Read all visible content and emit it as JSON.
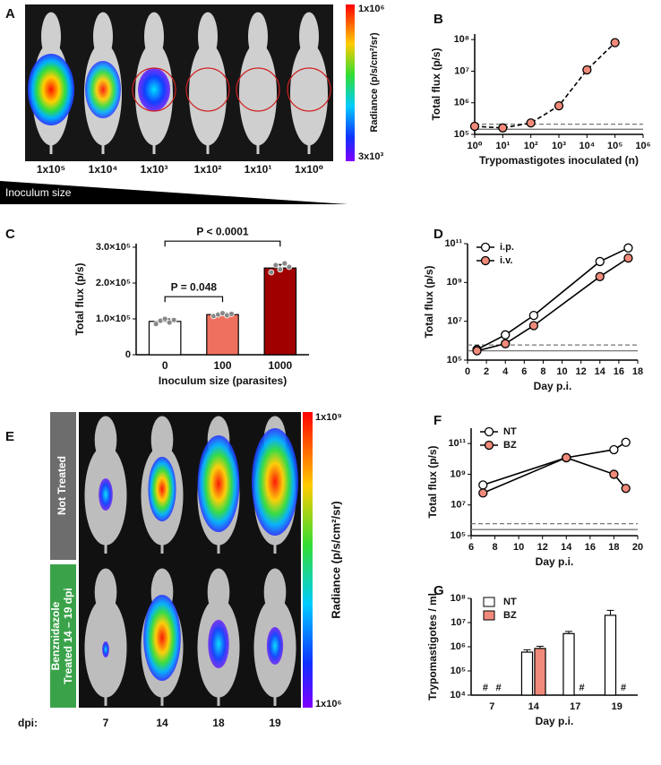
{
  "panel_a": {
    "panel": "A",
    "labels": [
      "1x10⁵",
      "1x10⁴",
      "1x10³",
      "1x10²",
      "1x10¹",
      "1x10⁰"
    ],
    "inoculum_label": "Inoculum size",
    "colorbar": {
      "max": "1x10⁶",
      "min": "3x10³",
      "title": "Radiance (p/s/cm²/sr)"
    }
  },
  "panel_e": {
    "panel": "E",
    "rows": [
      {
        "lines": [
          "Not Treated"
        ]
      },
      {
        "lines": [
          "Benznidazole",
          "Treated 14 – 19 dpi"
        ]
      }
    ],
    "dpi_label": "dpi:",
    "days": [
      "7",
      "14",
      "18",
      "19"
    ],
    "colorbar": {
      "max": "1x10⁹",
      "min": "1x10⁶",
      "title": "Radiance (p/s/cm²/sr)"
    }
  },
  "chart_data": [
    {
      "panel": "B",
      "type": "line",
      "x_label": "Trypomastigotes inoculated (n)",
      "y_label": "Total flux (p/s)",
      "log_x": true,
      "log_y": true,
      "x": [
        1,
        10,
        100,
        1000,
        10000,
        100000
      ],
      "series": [
        {
          "values": [
            180000,
            160000,
            230000,
            800000,
            11000000,
            80000000
          ],
          "color": "#f08a7a",
          "line_style": "dashed"
        }
      ],
      "xlim": [
        1,
        1000000
      ],
      "xticks": [
        {
          "value": 1,
          "label": "10⁰"
        },
        {
          "value": 10,
          "label": "10¹"
        },
        {
          "value": 100,
          "label": "10²"
        },
        {
          "value": 1000,
          "label": "10³"
        },
        {
          "value": 10000,
          "label": "10⁴"
        },
        {
          "value": 100000,
          "label": "10⁵"
        },
        {
          "value": 1000000,
          "label": "10⁶"
        }
      ],
      "ylim": [
        100000,
        150000000
      ],
      "yticks": [
        {
          "value": 100000,
          "label": "10⁵"
        },
        {
          "value": 1000000,
          "label": "10⁶"
        },
        {
          "value": 10000000,
          "label": "10⁷"
        },
        {
          "value": 100000000,
          "label": "10⁸"
        }
      ],
      "reference_lines": [
        {
          "value": 210000,
          "style": "dashed"
        },
        {
          "value": 145000,
          "style": "solid"
        }
      ]
    },
    {
      "panel": "C",
      "type": "bar",
      "x_label": "Inoculum size (parasites)",
      "y_label": "Total flux (p/s)",
      "categories": [
        "0",
        "100",
        "1000"
      ],
      "values": [
        93000,
        112000,
        242000
      ],
      "errors": [
        7000,
        5000,
        10000
      ],
      "colors": [
        "#ffffff",
        "#f0705f",
        "#a00000"
      ],
      "points": [
        [
          86000,
          95000,
          100000,
          90000,
          97000
        ],
        [
          108000,
          112000,
          116000,
          110000,
          114000
        ],
        [
          230000,
          250000,
          238000,
          255000,
          245000
        ]
      ],
      "ylim": [
        0,
        310000
      ],
      "yticks": [
        0,
        {
          "value": 100000,
          "label": "1.0×10⁵"
        },
        {
          "value": 200000,
          "label": "2.0×10⁵"
        },
        {
          "value": 300000,
          "label": "3.0×10⁵"
        }
      ],
      "annotations": [
        {
          "text": "P = 0.048",
          "from": 0,
          "to": 1
        },
        {
          "text": "P < 0.0001",
          "from": 0,
          "to": 2
        }
      ]
    },
    {
      "panel": "D",
      "type": "line",
      "x_label": "Day p.i.",
      "y_label": "Total flux (p/s)",
      "log_y": true,
      "x": [
        1,
        4,
        7,
        14,
        17
      ],
      "series": [
        {
          "name": "i.p.",
          "color": "#ffffff",
          "values": [
            350000,
            2000000,
            20000000,
            12000000000,
            60000000000
          ]
        },
        {
          "name": "i.v.",
          "color": "#f08a7a",
          "values": [
            300000,
            700000,
            6000000,
            2000000000,
            18000000000
          ]
        }
      ],
      "legend": "upper-left",
      "xlim": [
        0,
        18
      ],
      "xticks": [
        0,
        2,
        4,
        6,
        8,
        10,
        12,
        14,
        16,
        18
      ],
      "ylim": [
        100000,
        100000000000
      ],
      "yticks": [
        {
          "value": 100000,
          "label": "10⁵"
        },
        {
          "value": 10000000,
          "label": "10⁷"
        },
        {
          "value": 1000000000,
          "label": "10⁹"
        },
        {
          "value": 100000000000,
          "label": "10¹¹"
        }
      ],
      "reference_lines": [
        {
          "value": 600000,
          "style": "dashed"
        },
        {
          "value": 300000,
          "style": "solid"
        }
      ]
    },
    {
      "panel": "F",
      "type": "line",
      "x_label": "Day p.i.",
      "y_label": "Total flux (p/s)",
      "log_y": true,
      "x": [
        7,
        14,
        18,
        19
      ],
      "series": [
        {
          "name": "NT",
          "color": "#ffffff",
          "values": [
            200000000,
            12000000000,
            40000000000,
            120000000000
          ]
        },
        {
          "name": "BZ",
          "color": "#f08a7a",
          "values": [
            60000000,
            12000000000,
            1000000000,
            120000000
          ]
        }
      ],
      "legend": "upper-left",
      "xlim": [
        6,
        20
      ],
      "xticks": [
        6,
        8,
        10,
        12,
        14,
        16,
        18,
        20
      ],
      "ylim": [
        100000,
        1000000000000
      ],
      "yticks": [
        {
          "value": 100000,
          "label": "10⁵"
        },
        {
          "value": 10000000,
          "label": "10⁷"
        },
        {
          "value": 1000000000,
          "label": "10⁹"
        },
        {
          "value": 100000000000,
          "label": "10¹¹"
        }
      ],
      "reference_lines": [
        {
          "value": 600000,
          "style": "dashed"
        },
        {
          "value": 250000,
          "style": "solid"
        }
      ]
    },
    {
      "panel": "G",
      "type": "bar",
      "x_label": "Day p.i.",
      "y_label": "Trypomastigotes / ml",
      "log_y": true,
      "categories": [
        "7",
        "14",
        "17",
        "19"
      ],
      "series": [
        {
          "name": "NT",
          "color": "#ffffff",
          "values": [
            null,
            600000,
            3500000,
            20000000
          ],
          "errors": [
            null,
            150000,
            800000,
            12000000
          ],
          "value_labels": [
            "#",
            null,
            null,
            null
          ]
        },
        {
          "name": "BZ",
          "color": "#f08a7a",
          "values": [
            null,
            850000,
            null,
            null
          ],
          "errors": [
            null,
            200000,
            null,
            null
          ],
          "value_labels": [
            "#",
            null,
            "#",
            "#"
          ]
        }
      ],
      "legend": "upper-left",
      "ylim": [
        10000,
        100000000
      ],
      "yticks": [
        {
          "value": 10000,
          "label": "10⁴"
        },
        {
          "value": 100000,
          "label": "10⁵"
        },
        {
          "value": 1000000,
          "label": "10⁶"
        },
        {
          "value": 10000000,
          "label": "10⁷"
        },
        {
          "value": 100000000,
          "label": "10⁸"
        }
      ]
    }
  ]
}
